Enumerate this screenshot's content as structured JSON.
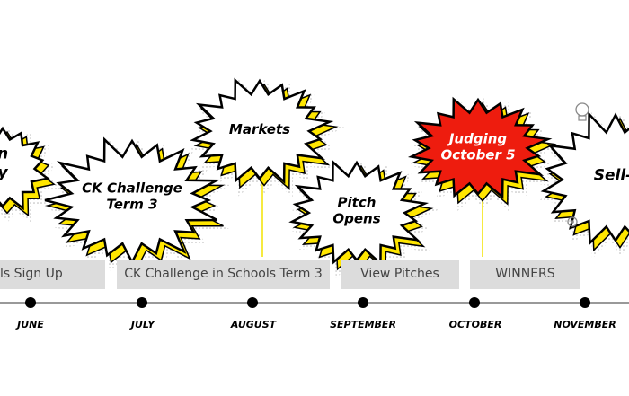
{
  "bursts": {
    "left_partial": {
      "line1": "n",
      "line2": "y"
    },
    "ck_challenge": {
      "line1": "CK Challenge",
      "line2": "Term 3"
    },
    "markets": {
      "line1": "Markets"
    },
    "pitch_opens": {
      "line1": "Pitch",
      "line2": "Opens"
    },
    "judging": {
      "line1": "Judging",
      "line2": "October 5"
    },
    "sell": {
      "line1": "Sell-"
    }
  },
  "bars": {
    "signup": "ls Sign Up",
    "ck_schools": "CK Challenge in Schools Term 3",
    "view_pitches": "View Pitches",
    "winners": "WINNERS"
  },
  "months": {
    "june": "JUNE",
    "july": "JULY",
    "august": "AUGUST",
    "september": "SEPTEMBER",
    "october": "OCTOBER",
    "november": "NOVEMBER"
  },
  "colors": {
    "burst_outline": "#000000",
    "burst_shadow": "#ffe600",
    "judging_fill": "#ee1c0e",
    "bar_fill": "#dcdcdc",
    "timeline": "#999999"
  }
}
